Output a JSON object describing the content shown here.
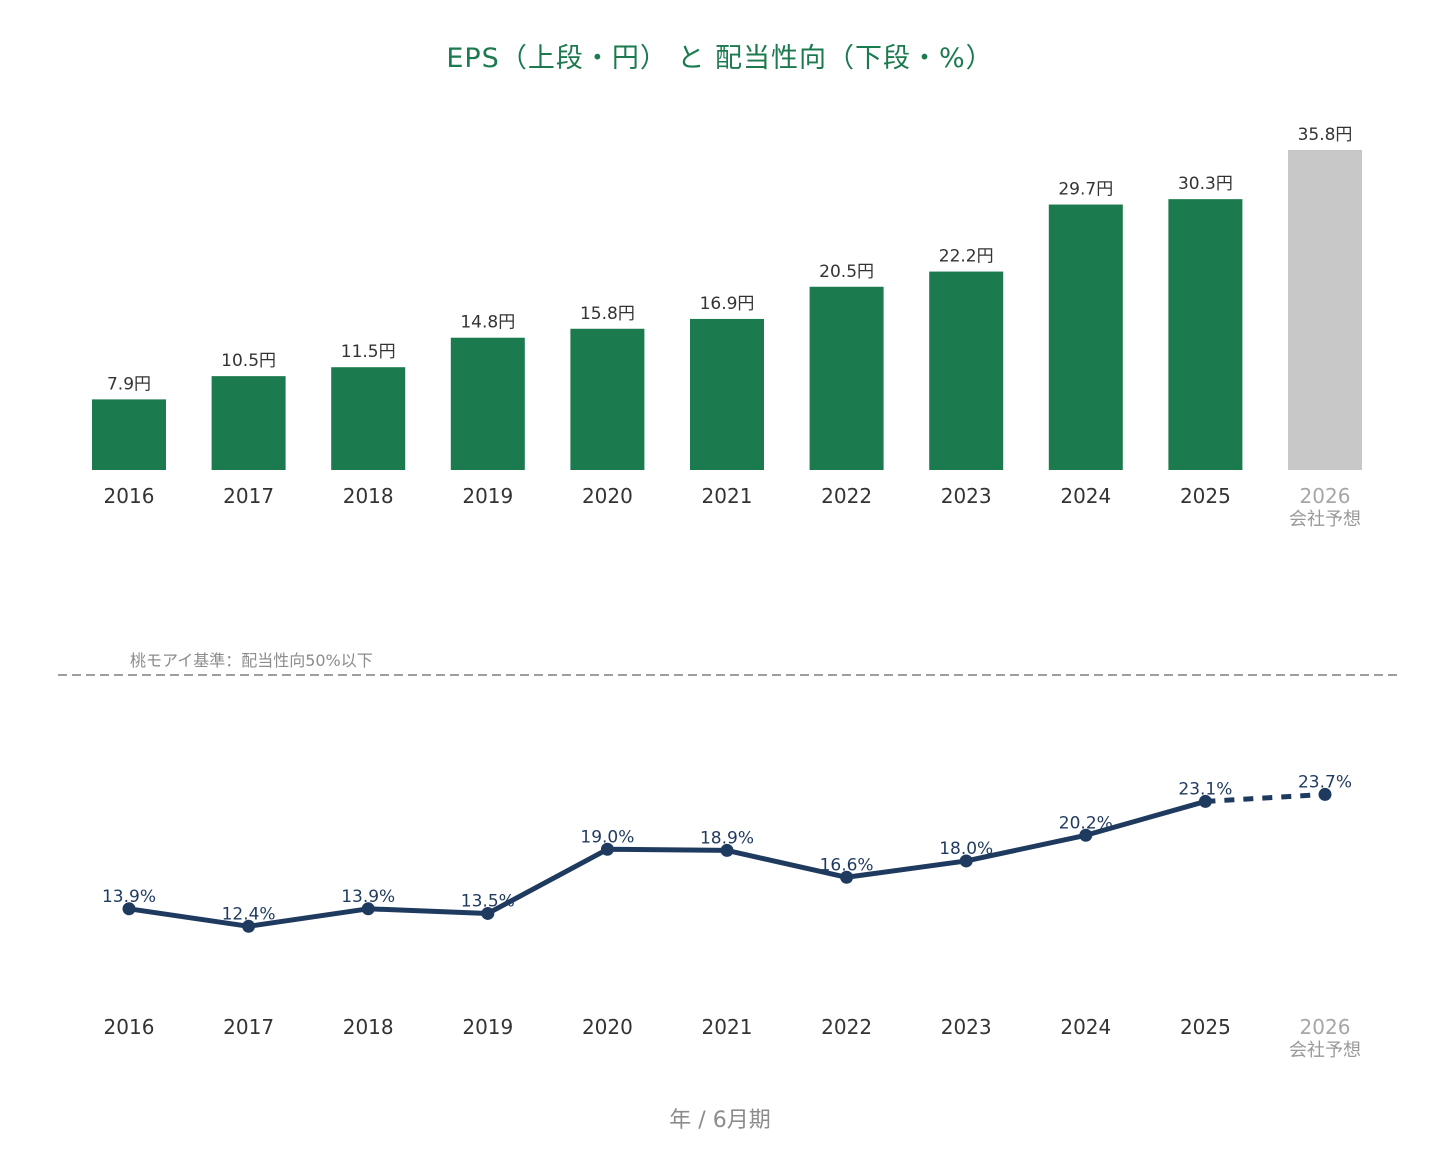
{
  "title": "EPS（上段・円） と 配当性向（下段・%）",
  "xlabel": "年 / 6月期",
  "colors": {
    "eps_bar": "#1b7a4e",
    "eps_forecast_bar": "#c8c8c8",
    "payout_line": "#1f3a5f",
    "reference_line": "#9e9e9e",
    "forecast_tick": "#a6a6a6"
  },
  "chart_data": [
    {
      "type": "bar",
      "title": "",
      "unit": "円",
      "categories": [
        "2016",
        "2017",
        "2018",
        "2019",
        "2020",
        "2021",
        "2022",
        "2023",
        "2024",
        "2025",
        "2026"
      ],
      "forecast_sublabel": "会社予想",
      "values": [
        7.9,
        10.5,
        11.5,
        14.8,
        15.8,
        16.9,
        20.5,
        22.2,
        29.7,
        30.3,
        35.8
      ],
      "data_labels": [
        "7.9円",
        "10.5円",
        "11.5円",
        "14.8円",
        "15.8円",
        "16.9円",
        "20.5円",
        "22.2円",
        "29.7円",
        "30.3円",
        "35.8円"
      ],
      "forecast_index": 10,
      "ylim": [
        0,
        35.8
      ],
      "grid": false
    },
    {
      "type": "line",
      "title": "",
      "unit": "%",
      "categories": [
        "2016",
        "2017",
        "2018",
        "2019",
        "2020",
        "2021",
        "2022",
        "2023",
        "2024",
        "2025",
        "2026"
      ],
      "forecast_sublabel": "会社予想",
      "values": [
        13.9,
        12.4,
        13.9,
        13.5,
        19.0,
        18.9,
        16.6,
        18.0,
        20.2,
        23.1,
        23.7
      ],
      "data_labels": [
        "13.9%",
        "12.4%",
        "13.9%",
        "13.5%",
        "19.0%",
        "18.9%",
        "16.6%",
        "18.0%",
        "20.2%",
        "23.1%",
        "23.7%"
      ],
      "forecast_index": 10,
      "reference_line": {
        "value": 50,
        "label": "桃モアイ基準：配当性向50%以下"
      },
      "ylim": [
        0,
        60
      ],
      "grid": false
    }
  ]
}
